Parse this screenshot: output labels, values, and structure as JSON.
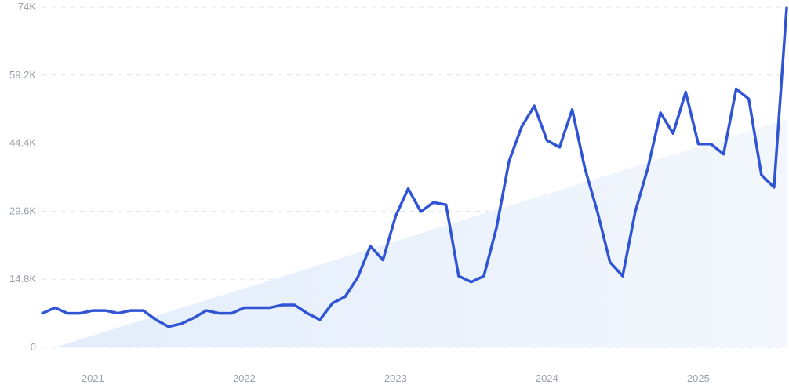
{
  "chart_data": {
    "type": "line",
    "title": "",
    "xlabel": "",
    "ylabel": "",
    "ylim": [
      0,
      74000
    ],
    "xlim": [
      "2020-09",
      "2025-08"
    ],
    "grid": true,
    "legend": "none",
    "y_ticks": [
      {
        "value": 0,
        "label": "0"
      },
      {
        "value": 14800,
        "label": "14.8K"
      },
      {
        "value": 29600,
        "label": "29.6K"
      },
      {
        "value": 44400,
        "label": "44.4K"
      },
      {
        "value": 59200,
        "label": "59.2K"
      },
      {
        "value": 74000,
        "label": "74K"
      }
    ],
    "x_ticks": [
      {
        "value": "2021-01",
        "label": "2021"
      },
      {
        "value": "2022-01",
        "label": "2022"
      },
      {
        "value": "2023-01",
        "label": "2023"
      },
      {
        "value": "2024-01",
        "label": "2024"
      },
      {
        "value": "2025-01",
        "label": "2025"
      }
    ],
    "series": [
      {
        "type": "line",
        "color": "#2f55d4",
        "x": [
          "2020-09",
          "2020-10",
          "2020-11",
          "2020-12",
          "2021-01",
          "2021-02",
          "2021-03",
          "2021-04",
          "2021-05",
          "2021-06",
          "2021-07",
          "2021-08",
          "2021-09",
          "2021-10",
          "2021-11",
          "2021-12",
          "2022-01",
          "2022-02",
          "2022-03",
          "2022-04",
          "2022-05",
          "2022-06",
          "2022-07",
          "2022-08",
          "2022-09",
          "2022-10",
          "2022-11",
          "2022-12",
          "2023-01",
          "2023-02",
          "2023-03",
          "2023-04",
          "2023-05",
          "2023-06",
          "2023-07",
          "2023-08",
          "2023-09",
          "2023-10",
          "2023-11",
          "2023-12",
          "2024-01",
          "2024-02",
          "2024-03",
          "2024-04",
          "2024-05",
          "2024-06",
          "2024-07",
          "2024-08",
          "2024-09",
          "2024-10",
          "2024-11",
          "2024-12",
          "2025-01",
          "2025-02",
          "2025-03",
          "2025-04",
          "2025-05",
          "2025-06",
          "2025-07",
          "2025-08"
        ],
        "y": [
          7400,
          8600,
          7400,
          7400,
          8000,
          8000,
          7400,
          8000,
          8000,
          6000,
          4500,
          5100,
          6400,
          8000,
          7400,
          7400,
          8600,
          8600,
          8600,
          9200,
          9200,
          7400,
          6000,
          9600,
          11000,
          15200,
          22000,
          19000,
          28500,
          34500,
          29500,
          31500,
          31000,
          15500,
          14200,
          15500,
          26000,
          40500,
          48000,
          52500,
          45000,
          43500,
          51700,
          39000,
          29500,
          18500,
          15500,
          29500,
          39000,
          51000,
          46500,
          55500,
          44200,
          44200,
          42000,
          56200,
          54000,
          37500,
          34800,
          73800
        ]
      },
      {
        "type": "trend-area",
        "color": "#eef4fd",
        "x": [
          "2020-10",
          "2025-08"
        ],
        "y": [
          0,
          49600
        ]
      }
    ]
  }
}
